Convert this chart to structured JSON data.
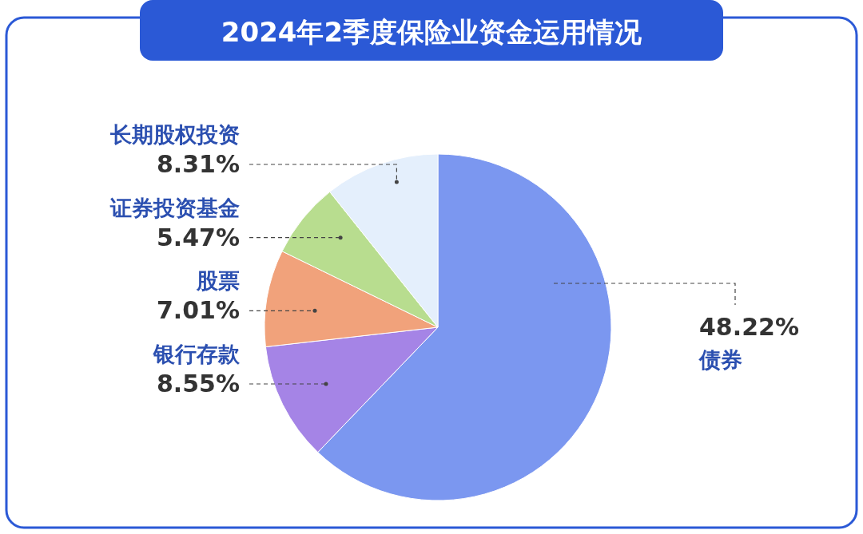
{
  "chart_data": {
    "type": "pie",
    "title": "2024年2季度保险业资金运用情况",
    "categories": [
      "债券",
      "银行存款",
      "股票",
      "证券投资基金",
      "长期股权投资"
    ],
    "values": [
      48.22,
      8.55,
      7.01,
      5.47,
      8.31
    ],
    "value_labels": [
      "48.22%",
      "8.55%",
      "7.01%",
      "5.47%",
      "8.31%"
    ],
    "colors": [
      "#7b97f0",
      "#a584e6",
      "#f1a27b",
      "#b8dd8f",
      "#e4effc"
    ]
  }
}
